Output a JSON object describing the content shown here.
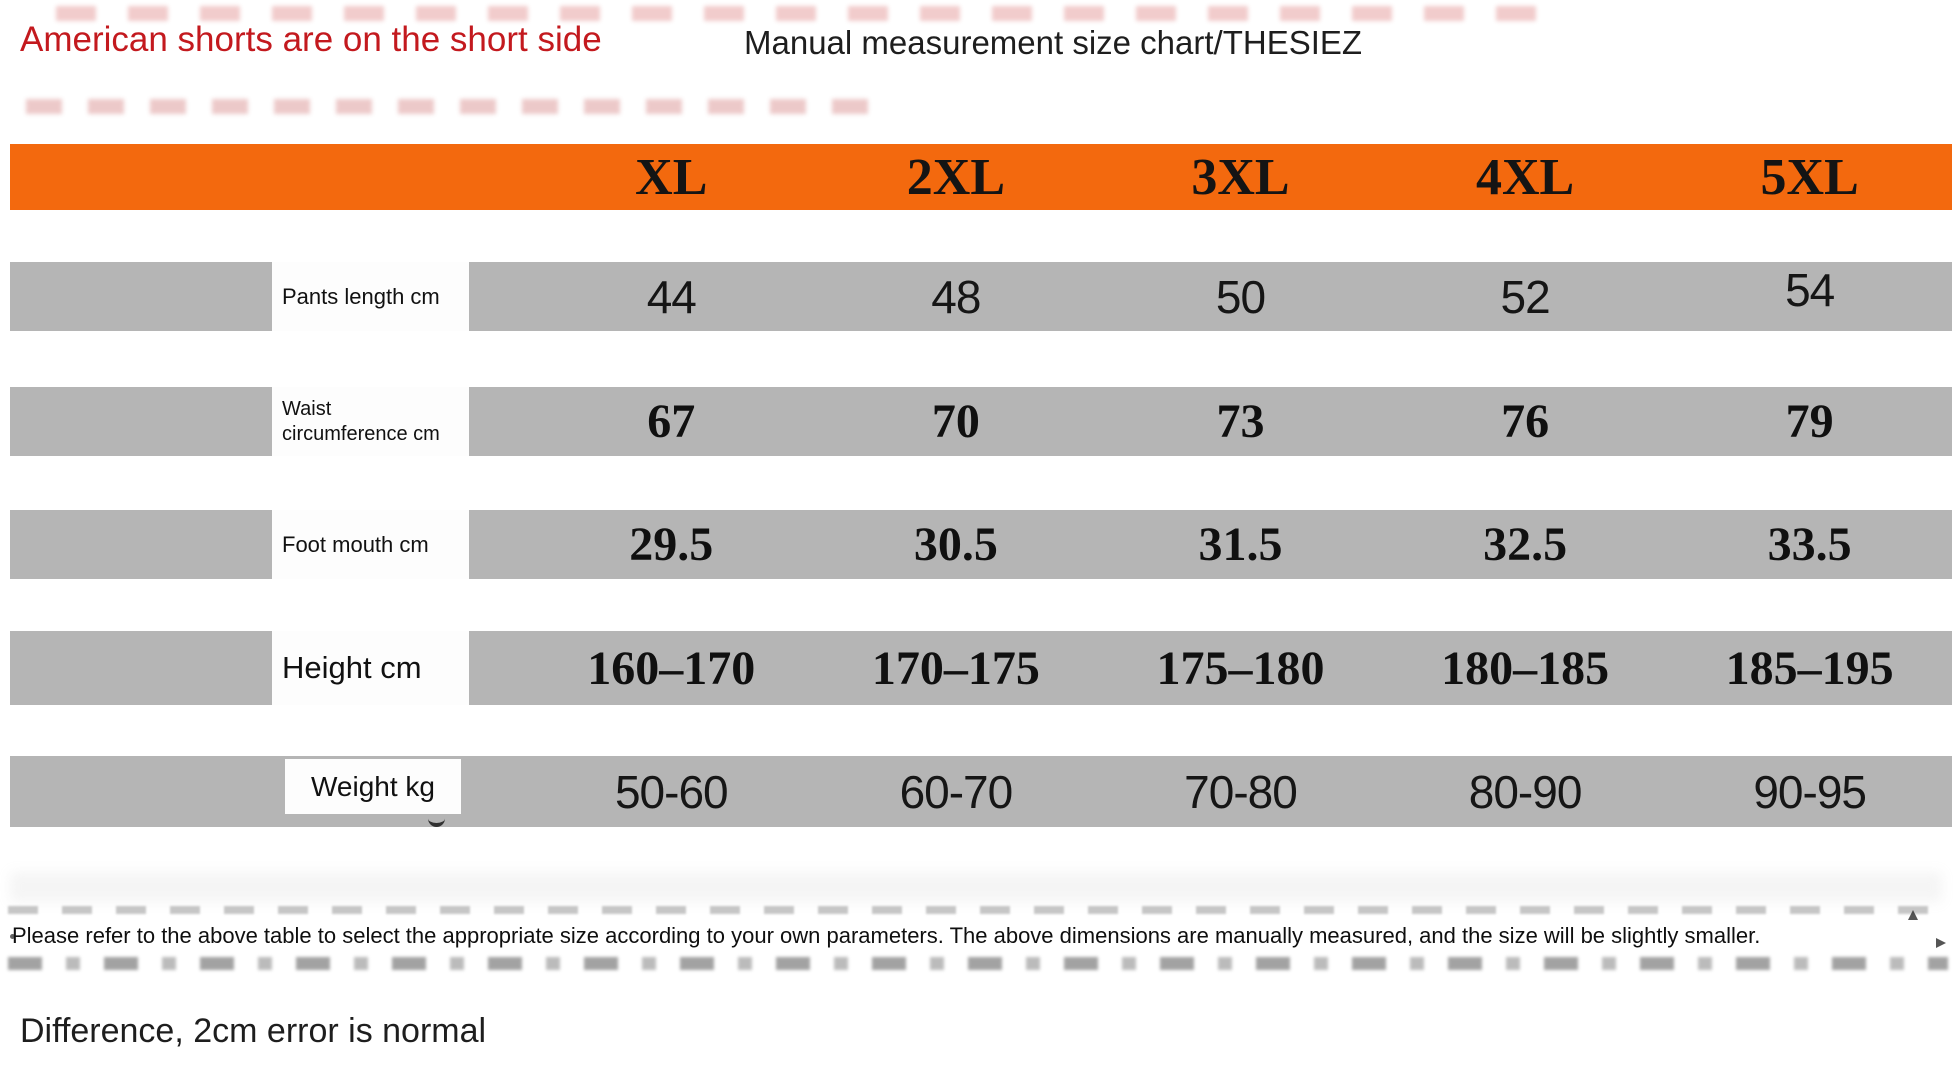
{
  "page": {
    "red_note": "American shorts are on the short side",
    "title": "Manual measurement size chart/THESIEZ",
    "disclaimer": "Please refer to the above table to select the appropriate size according to your own parameters. The above dimensions are manually measured, and the size will be slightly smaller.",
    "footer_note": "Difference, 2cm error is normal"
  },
  "chart_data": {
    "type": "table",
    "title": "Manual measurement size chart/THESIEZ",
    "columns": [
      "XL",
      "2XL",
      "3XL",
      "4XL",
      "5XL"
    ],
    "rows": [
      {
        "label": "Pants length cm",
        "values": [
          "44",
          "48",
          "50",
          "52",
          "54"
        ]
      },
      {
        "label": "Waist\ncircumference cm",
        "values": [
          "67",
          "70",
          "73",
          "76",
          "79"
        ]
      },
      {
        "label": "Foot mouth cm",
        "values": [
          "29.5",
          "30.5",
          "31.5",
          "32.5",
          "33.5"
        ]
      },
      {
        "label": "Height cm",
        "values": [
          "160–170",
          "170–175",
          "175–180",
          "180–185",
          "185–195"
        ]
      },
      {
        "label": "Weight kg",
        "values": [
          "50-60",
          "60-70",
          "70-80",
          "80-90",
          "90-95"
        ]
      }
    ]
  },
  "colors": {
    "header_orange": "#F3690E",
    "row_gray": "#B5B5B5",
    "red_text": "#C3191E",
    "black_text": "#1E1E1E"
  }
}
